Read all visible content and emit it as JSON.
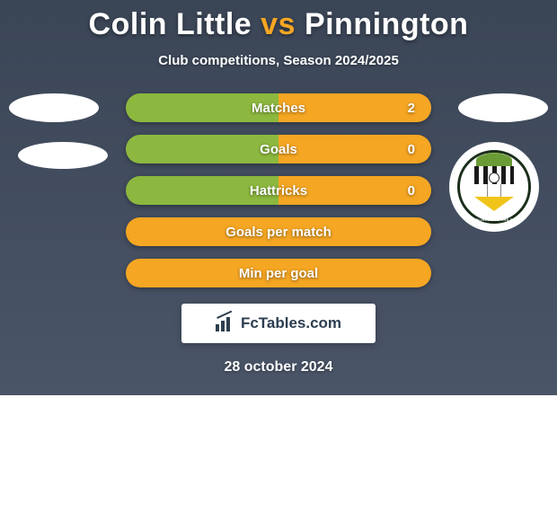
{
  "title": {
    "player1": "Colin Little",
    "vs": "vs",
    "player2": "Pinnington"
  },
  "subtitle": "Club competitions, Season 2024/2025",
  "colors": {
    "orange": "#f5a623",
    "green": "#8cb83f",
    "bg": "#4a5568"
  },
  "stats": [
    {
      "label": "Matches",
      "value": "2",
      "left_pct": 50,
      "right_pct": 50,
      "left_color": "#8cb83f",
      "right_color": "#f5a623",
      "show_value": true
    },
    {
      "label": "Goals",
      "value": "0",
      "left_pct": 50,
      "right_pct": 50,
      "left_color": "#8cb83f",
      "right_color": "#f5a623",
      "show_value": true
    },
    {
      "label": "Hattricks",
      "value": "0",
      "left_pct": 50,
      "right_pct": 50,
      "left_color": "#8cb83f",
      "right_color": "#f5a623",
      "show_value": true
    },
    {
      "label": "Goals per match",
      "value": "",
      "left_pct": 100,
      "right_pct": 0,
      "left_color": "#f5a623",
      "right_color": "#f5a623",
      "show_value": false
    },
    {
      "label": "Min per goal",
      "value": "",
      "left_pct": 100,
      "right_pct": 0,
      "left_color": "#f5a623",
      "right_color": "#f5a623",
      "show_value": false
    }
  ],
  "watermark": "FcTables.com",
  "date": "28 october 2024",
  "crest_text": "SOLIHULL MOORS FC"
}
